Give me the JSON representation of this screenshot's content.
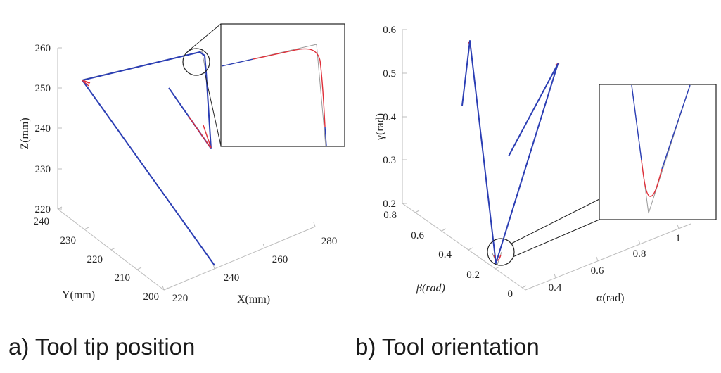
{
  "captions": {
    "a": "a) Tool tip position",
    "b": "b) Tool orientation"
  },
  "colors": {
    "series_blue": "#2b3eb4",
    "series_red": "#e0303a",
    "reference_gray": "#9a9a9a",
    "axis": "#bdbdbd",
    "text": "#222222"
  },
  "chart_data": [
    {
      "type": "line",
      "projection": "3d",
      "xlabel": "X(mm)",
      "ylabel": "Y(mm)",
      "zlabel": "Z(mm)",
      "x_ticks": [
        "220",
        "240",
        "260",
        "280"
      ],
      "y_ticks": [
        "200",
        "210",
        "220",
        "230",
        "240"
      ],
      "z_ticks": [
        "220",
        "230",
        "240",
        "250",
        "260"
      ],
      "xlim": [
        215,
        285
      ],
      "ylim": [
        200,
        240
      ],
      "zlim": [
        220,
        262
      ],
      "grid": false,
      "series": [
        {
          "color": "blue",
          "points": [
            {
              "x": 241,
              "y": 212,
              "z": 213
            },
            {
              "x": 232,
              "y": 238,
              "z": 252
            },
            {
              "x": 270,
              "y": 236,
              "z": 258
            },
            {
              "x": 276,
              "y": 230,
              "z": 241
            },
            {
              "x": 264,
              "y": 236,
              "z": 246
            }
          ]
        }
      ],
      "inset": {
        "description_corner": "zoom of top corner",
        "highlight": "rounded corner in red vs sharp gray reference"
      }
    },
    {
      "type": "line",
      "projection": "3d",
      "xlabel": "α(rad)",
      "ylabel": "β(rad)",
      "zlabel": "γ(rad)",
      "x_ticks": [
        "0.4",
        "0.6",
        "0.8",
        "1"
      ],
      "y_ticks": [
        "0",
        "0.2",
        "0.4",
        "0.6",
        "0.8"
      ],
      "z_ticks": [
        "0.2",
        "0.3",
        "0.4",
        "0.5",
        "0.6"
      ],
      "xlim": [
        0.3,
        1.05
      ],
      "ylim": [
        0,
        0.8
      ],
      "zlim": [
        0.2,
        0.6
      ],
      "grid": false,
      "series": [
        {
          "color": "blue",
          "points": [
            {
              "x": 0.32,
              "y": 0.58,
              "z": 0.43
            },
            {
              "x": 0.36,
              "y": 0.55,
              "z": 0.58
            },
            {
              "x": 0.5,
              "y": 0.12,
              "z": 0.16
            },
            {
              "x": 0.88,
              "y": 0.3,
              "z": 0.52
            },
            {
              "x": 0.7,
              "y": 0.35,
              "z": 0.31
            }
          ]
        }
      ],
      "inset": {
        "description_corner": "zoom of bottom vertex",
        "highlight": "rounded vertex in red vs sharp gray reference"
      }
    }
  ]
}
